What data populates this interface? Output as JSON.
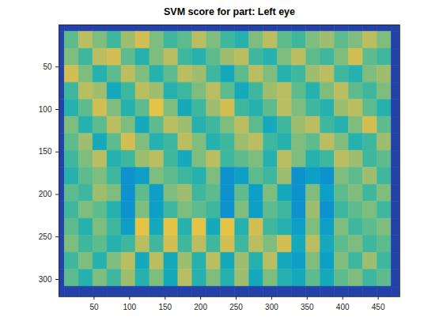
{
  "chart_data": {
    "type": "heatmap",
    "title": "SVM score for part: Left eye",
    "x_edges": [
      0.5,
      8.5,
      28.5,
      48.5,
      68.5,
      88.5,
      108.5,
      128.5,
      148.5,
      168.5,
      188.5,
      208.5,
      228.5,
      248.5,
      268.5,
      288.5,
      308.5,
      328.5,
      348.5,
      368.5,
      388.5,
      408.5,
      428.5,
      448.5,
      468.5,
      480.5
    ],
    "y_edges": [
      0.5,
      8.5,
      28.5,
      48.5,
      68.5,
      88.5,
      108.5,
      128.5,
      148.5,
      168.5,
      188.5,
      208.5,
      228.5,
      248.5,
      268.5,
      288.5,
      308.5,
      320.5
    ],
    "values": [
      [
        0.05,
        0.05,
        0.05,
        0.05,
        0.05,
        0.05,
        0.05,
        0.05,
        0.05,
        0.05,
        0.05,
        0.05,
        0.05,
        0.05,
        0.05,
        0.05,
        0.05,
        0.05,
        0.05,
        0.05,
        0.05,
        0.05,
        0.05,
        0.05,
        0.05
      ],
      [
        0.05,
        0.55,
        0.7,
        0.6,
        0.5,
        0.65,
        0.75,
        0.6,
        0.5,
        0.55,
        0.7,
        0.6,
        0.5,
        0.45,
        0.6,
        0.7,
        0.55,
        0.5,
        0.6,
        0.65,
        0.55,
        0.6,
        0.7,
        0.6,
        0.05
      ],
      [
        0.05,
        0.6,
        0.5,
        0.7,
        0.75,
        0.55,
        0.45,
        0.6,
        0.7,
        0.5,
        0.45,
        0.55,
        0.65,
        0.7,
        0.5,
        0.45,
        0.6,
        0.7,
        0.55,
        0.5,
        0.6,
        0.75,
        0.55,
        0.5,
        0.05
      ],
      [
        0.05,
        0.75,
        0.6,
        0.45,
        0.55,
        0.7,
        0.6,
        0.45,
        0.55,
        0.7,
        0.65,
        0.5,
        0.4,
        0.55,
        0.7,
        0.6,
        0.45,
        0.5,
        0.65,
        0.7,
        0.5,
        0.45,
        0.6,
        0.65,
        0.05
      ],
      [
        0.05,
        0.5,
        0.7,
        0.65,
        0.4,
        0.5,
        0.7,
        0.65,
        0.45,
        0.5,
        0.6,
        0.7,
        0.55,
        0.4,
        0.5,
        0.65,
        0.7,
        0.55,
        0.45,
        0.6,
        0.7,
        0.55,
        0.5,
        0.6,
        0.05
      ],
      [
        0.05,
        0.45,
        0.55,
        0.75,
        0.6,
        0.45,
        0.55,
        0.8,
        0.6,
        0.4,
        0.5,
        0.65,
        0.75,
        0.5,
        0.45,
        0.55,
        0.7,
        0.6,
        0.5,
        0.45,
        0.65,
        0.7,
        0.55,
        0.45,
        0.05
      ],
      [
        0.05,
        0.6,
        0.45,
        0.55,
        0.7,
        0.6,
        0.4,
        0.55,
        0.7,
        0.65,
        0.45,
        0.5,
        0.6,
        0.7,
        0.55,
        0.4,
        0.5,
        0.65,
        0.7,
        0.5,
        0.45,
        0.6,
        0.75,
        0.55,
        0.05
      ],
      [
        0.05,
        0.55,
        0.65,
        0.4,
        0.55,
        0.75,
        0.6,
        0.45,
        0.5,
        0.7,
        0.6,
        0.45,
        0.5,
        0.65,
        0.7,
        0.5,
        0.45,
        0.6,
        0.55,
        0.7,
        0.6,
        0.45,
        0.5,
        0.65,
        0.05
      ],
      [
        0.05,
        0.5,
        0.6,
        0.7,
        0.45,
        0.5,
        0.65,
        0.7,
        0.5,
        0.4,
        0.6,
        0.7,
        0.5,
        0.55,
        0.6,
        0.45,
        0.7,
        0.6,
        0.45,
        0.5,
        0.7,
        0.65,
        0.5,
        0.55,
        0.05
      ],
      [
        0.05,
        0.45,
        0.55,
        0.6,
        0.5,
        0.3,
        0.35,
        0.6,
        0.55,
        0.5,
        0.45,
        0.6,
        0.3,
        0.35,
        0.55,
        0.5,
        0.65,
        0.3,
        0.35,
        0.3,
        0.6,
        0.55,
        0.65,
        0.5,
        0.05
      ],
      [
        0.05,
        0.55,
        0.5,
        0.65,
        0.6,
        0.3,
        0.55,
        0.35,
        0.6,
        0.65,
        0.5,
        0.55,
        0.3,
        0.55,
        0.35,
        0.6,
        0.4,
        0.3,
        0.6,
        0.35,
        0.55,
        0.6,
        0.5,
        0.6,
        0.05
      ],
      [
        0.05,
        0.5,
        0.6,
        0.55,
        0.45,
        0.3,
        0.6,
        0.35,
        0.5,
        0.6,
        0.55,
        0.5,
        0.3,
        0.6,
        0.35,
        0.55,
        0.5,
        0.3,
        0.65,
        0.3,
        0.5,
        0.55,
        0.6,
        0.5,
        0.05
      ],
      [
        0.05,
        0.55,
        0.45,
        0.6,
        0.5,
        0.35,
        0.8,
        0.4,
        0.8,
        0.45,
        0.8,
        0.4,
        0.8,
        0.45,
        0.75,
        0.5,
        0.45,
        0.35,
        0.6,
        0.35,
        0.6,
        0.5,
        0.55,
        0.6,
        0.05
      ],
      [
        0.05,
        0.6,
        0.5,
        0.55,
        0.45,
        0.5,
        0.7,
        0.5,
        0.75,
        0.5,
        0.7,
        0.5,
        0.75,
        0.5,
        0.7,
        0.6,
        0.75,
        0.4,
        0.7,
        0.4,
        0.55,
        0.6,
        0.5,
        0.55,
        0.05
      ],
      [
        0.05,
        0.5,
        0.6,
        0.45,
        0.6,
        0.7,
        0.4,
        0.7,
        0.4,
        0.65,
        0.45,
        0.7,
        0.4,
        0.65,
        0.45,
        0.7,
        0.4,
        0.35,
        0.6,
        0.35,
        0.6,
        0.5,
        0.65,
        0.5,
        0.05
      ],
      [
        0.05,
        0.55,
        0.45,
        0.6,
        0.5,
        0.65,
        0.45,
        0.6,
        0.4,
        0.7,
        0.45,
        0.6,
        0.45,
        0.65,
        0.4,
        0.6,
        0.45,
        0.4,
        0.55,
        0.4,
        0.55,
        0.6,
        0.5,
        0.55,
        0.05
      ],
      [
        0.05,
        0.05,
        0.05,
        0.05,
        0.05,
        0.05,
        0.05,
        0.05,
        0.05,
        0.05,
        0.05,
        0.05,
        0.05,
        0.05,
        0.05,
        0.05,
        0.05,
        0.05,
        0.05,
        0.05,
        0.05,
        0.05,
        0.05,
        0.05,
        0.05
      ]
    ],
    "vlim": [
      0,
      1
    ],
    "xlim": [
      0.5,
      480.5
    ],
    "ylim": [
      0.5,
      320.5
    ],
    "xticks": [
      50,
      100,
      150,
      200,
      250,
      300,
      350,
      400,
      450
    ],
    "yticks": [
      50,
      100,
      150,
      200,
      250,
      300
    ],
    "grid": false
  }
}
